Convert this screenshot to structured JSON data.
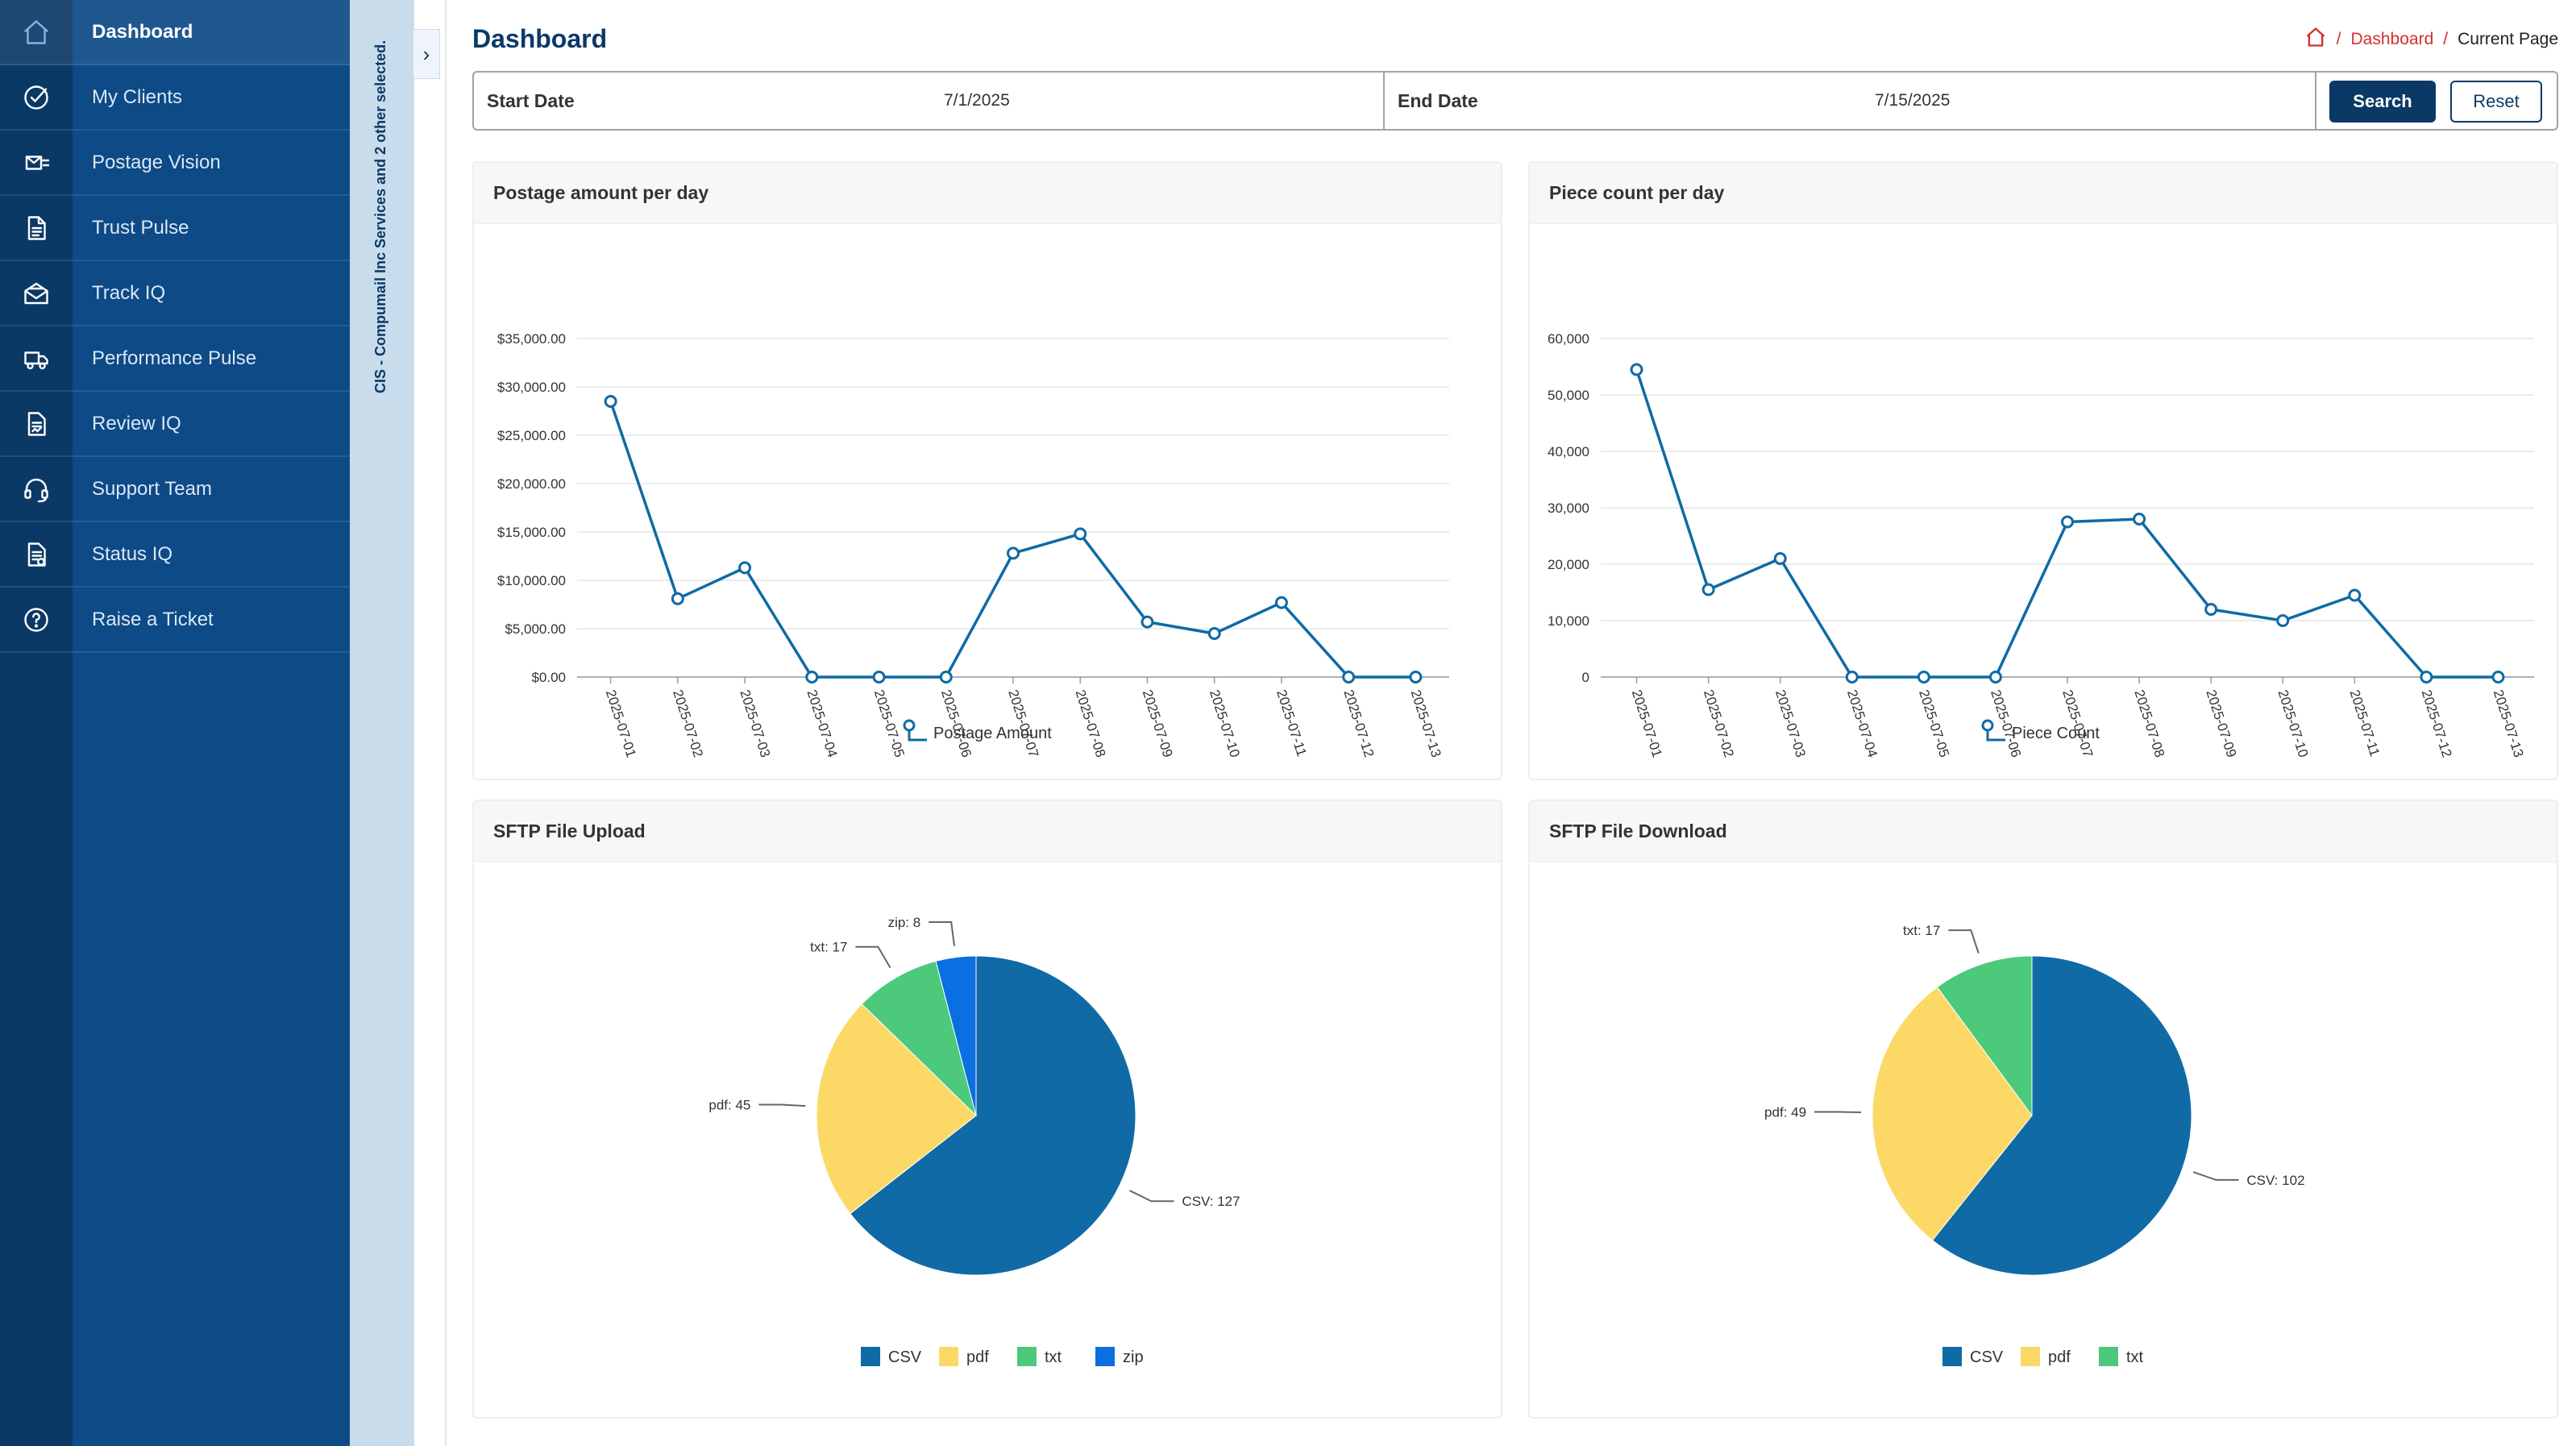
{
  "sidebar": {
    "items": [
      {
        "label": "Dashboard",
        "icon": "home-icon",
        "active": true
      },
      {
        "label": "My Clients",
        "icon": "check-circle-icon"
      },
      {
        "label": "Postage Vision",
        "icon": "mail-send-icon"
      },
      {
        "label": "Trust Pulse",
        "icon": "document-icon"
      },
      {
        "label": "Track IQ",
        "icon": "envelope-open-icon"
      },
      {
        "label": "Performance Pulse",
        "icon": "truck-icon"
      },
      {
        "label": "Review IQ",
        "icon": "report-icon"
      },
      {
        "label": "Support Team",
        "icon": "headset-icon"
      },
      {
        "label": "Status IQ",
        "icon": "status-report-icon"
      },
      {
        "label": "Raise a Ticket",
        "icon": "help-circle-icon"
      }
    ]
  },
  "client_selector": {
    "text": "CIS - Compumail Inc Services and 2 other selected."
  },
  "header": {
    "title": "Dashboard",
    "breadcrumb": {
      "link": "Dashboard",
      "current": "Current Page"
    }
  },
  "filters": {
    "start_label": "Start Date",
    "start_value": "7/1/2025",
    "end_label": "End Date",
    "end_value": "7/15/2025",
    "search_label": "Search",
    "reset_label": "Reset"
  },
  "colors": {
    "navy": "#0b3966",
    "line": "#0f6aa5",
    "csv": "#0f6aa5",
    "pdf": "#fcd966",
    "txt": "#4cc97a",
    "zip": "#0a6fe0"
  },
  "chart_data": [
    {
      "type": "line",
      "title": "Postage amount per day",
      "categories": [
        "2025-07-01",
        "2025-07-02",
        "2025-07-03",
        "2025-07-04",
        "2025-07-05",
        "2025-07-06",
        "2025-07-07",
        "2025-07-08",
        "2025-07-09",
        "2025-07-10",
        "2025-07-11",
        "2025-07-12",
        "2025-07-13"
      ],
      "series": [
        {
          "name": "Postage Amount",
          "values": [
            28500,
            8100,
            11300,
            0,
            0,
            0,
            12800,
            14800,
            5700,
            4500,
            7700,
            0,
            0
          ]
        }
      ],
      "yticks": [
        "$0.00",
        "$5,000.00",
        "$10,000.00",
        "$15,000.00",
        "$20,000.00",
        "$25,000.00",
        "$30,000.00",
        "$35,000.00"
      ],
      "ylim": [
        0,
        35000
      ],
      "grid": true,
      "legend": "bottom"
    },
    {
      "type": "line",
      "title": "Piece count per day",
      "categories": [
        "2025-07-01",
        "2025-07-02",
        "2025-07-03",
        "2025-07-04",
        "2025-07-05",
        "2025-07-06",
        "2025-07-07",
        "2025-07-08",
        "2025-07-09",
        "2025-07-10",
        "2025-07-11",
        "2025-07-12",
        "2025-07-13"
      ],
      "series": [
        {
          "name": "Piece Count",
          "values": [
            54500,
            15500,
            21000,
            0,
            0,
            0,
            27500,
            28000,
            12000,
            10000,
            14500,
            0,
            0
          ]
        }
      ],
      "yticks": [
        "0",
        "10,000",
        "20,000",
        "30,000",
        "40,000",
        "50,000",
        "60,000"
      ],
      "ylim": [
        0,
        60000
      ],
      "grid": true,
      "legend": "bottom"
    },
    {
      "type": "pie",
      "title": "SFTP File Upload",
      "slices": [
        {
          "label": "CSV",
          "value": 127,
          "callout": "CSV: 127",
          "color": "#0f6aa5"
        },
        {
          "label": "pdf",
          "value": 45,
          "callout": "pdf: 45",
          "color": "#fcd966"
        },
        {
          "label": "txt",
          "value": 17,
          "callout": "txt: 17",
          "color": "#4cc97a"
        },
        {
          "label": "zip",
          "value": 8,
          "callout": "zip: 8",
          "color": "#0a6fe0"
        }
      ],
      "legend": "bottom"
    },
    {
      "type": "pie",
      "title": "SFTP File Download",
      "slices": [
        {
          "label": "CSV",
          "value": 102,
          "callout": "CSV: 102",
          "color": "#0f6aa5"
        },
        {
          "label": "pdf",
          "value": 49,
          "callout": "pdf: 49",
          "color": "#fcd966"
        },
        {
          "label": "txt",
          "value": 17,
          "callout": "txt: 17",
          "color": "#4cc97a"
        }
      ],
      "legend": "bottom"
    }
  ]
}
